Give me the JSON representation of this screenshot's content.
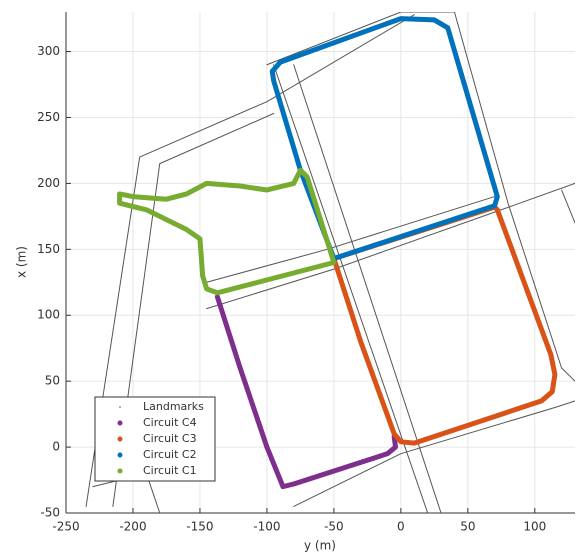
{
  "chart_data": {
    "type": "line",
    "xlabel": "y (m)",
    "ylabel": "x (m)",
    "xlim": [
      -250,
      130
    ],
    "ylim": [
      -50,
      330
    ],
    "xticks": [
      -250,
      -200,
      -150,
      -100,
      -50,
      0,
      50,
      100
    ],
    "yticks": [
      -50,
      0,
      50,
      100,
      150,
      200,
      250,
      300
    ],
    "grid": true,
    "legend": "lower left",
    "series": [
      {
        "name": "Landmarks",
        "color": "#555555",
        "x": [
          -235,
          -195,
          -100,
          10,
          null,
          -215,
          -180,
          -95,
          null,
          -95,
          20,
          null,
          -80,
          30,
          null,
          -100,
          0,
          40,
          80,
          120,
          130,
          null,
          -80,
          0,
          115,
          130,
          null,
          -145,
          -50,
          75,
          130,
          null,
          -145,
          -55,
          70,
          null,
          120,
          130,
          null,
          -230,
          -190,
          -180
        ],
        "values": [
          -45,
          220,
          262,
          328,
          null,
          -45,
          215,
          253,
          null,
          290,
          -50,
          null,
          290,
          -50,
          null,
          290,
          330,
          330,
          185,
          60,
          50,
          null,
          -45,
          -5,
          30,
          35,
          null,
          105,
          135,
          180,
          200,
          null,
          125,
          150,
          190,
          null,
          195,
          170,
          null,
          -30,
          -20,
          -50
        ]
      },
      {
        "name": "Circuit C4",
        "color": "#7e2f8e",
        "x": [
          -137,
          -120,
          -100,
          -88,
          -80,
          -10,
          -4,
          -5
        ],
        "values": [
          114,
          60,
          0,
          -30,
          -28,
          -5,
          0,
          8
        ]
      },
      {
        "name": "Circuit C3",
        "color": "#d95319",
        "x": [
          -50,
          -30,
          -5,
          0,
          10,
          105,
          113,
          115,
          112,
          72,
          70,
          -50
        ],
        "values": [
          143,
          80,
          10,
          4,
          3,
          35,
          42,
          55,
          70,
          180,
          182,
          143
        ]
      },
      {
        "name": "Circuit C2",
        "color": "#0072bd",
        "x": [
          -50,
          70,
          72,
          35,
          25,
          0,
          -90,
          -96,
          -95,
          -75,
          -50
        ],
        "values": [
          143,
          183,
          190,
          318,
          324,
          325,
          292,
          285,
          278,
          210,
          143
        ]
      },
      {
        "name": "Circuit C1",
        "color": "#77ac30",
        "x": [
          -137,
          -50,
          -70,
          -75,
          -80,
          -100,
          -120,
          -145,
          -160,
          -175,
          -200,
          -210,
          -210,
          -190,
          -160,
          -150,
          -148,
          -145,
          -137
        ],
        "values": [
          117,
          140,
          205,
          210,
          200,
          195,
          198,
          200,
          192,
          188,
          190,
          192,
          185,
          180,
          165,
          158,
          130,
          120,
          117
        ]
      }
    ]
  }
}
